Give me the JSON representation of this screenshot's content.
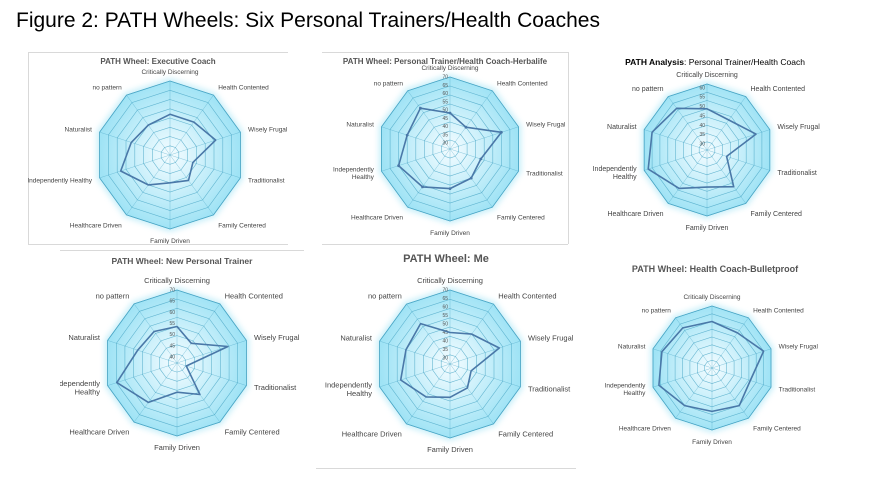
{
  "figure_title": "Figure 2: PATH Wheels: Six Personal Trainers/Health Coaches",
  "axis_labels": [
    "Critically Discerning",
    "Health Contented",
    "Wisely Frugal",
    "Traditionalist",
    "Family Centered",
    "Family Driven",
    "Healthcare Driven",
    "Independently Healthy",
    "Naturalist",
    "no pattern"
  ],
  "colors": {
    "fill_outer": "#9fe3f5",
    "fill_inner": "#dff6fd",
    "grid": "#4aa6c6",
    "line": "#4a78a8"
  },
  "chart_data": [
    {
      "type": "radar",
      "title": "PATH Wheel: Executive Coach",
      "tick_labels": [],
      "rmin": 30,
      "rmax": 70,
      "series": [
        {
          "values": [
            52,
            52,
            56,
            43,
            47,
            45,
            50,
            58,
            52,
            50
          ]
        }
      ]
    },
    {
      "type": "radar",
      "title": "PATH Wheel: Personal Trainer/Health Coach-Herbalife",
      "tick_labels": [
        "70",
        "65",
        "60",
        "55",
        "50",
        "45",
        "40",
        "35",
        "30"
      ],
      "rmin": 30,
      "rmax": 70,
      "series": [
        {
          "values": [
            50,
            45,
            60,
            48,
            50,
            52,
            56,
            60,
            55,
            58
          ]
        }
      ]
    },
    {
      "type": "radar",
      "title_bold": "PATH Analysis",
      "title": ": Personal Trainer/Health Coach",
      "tick_labels": [
        "60",
        "55",
        "50",
        "45",
        "40",
        "35",
        "30"
      ],
      "rmin": 30,
      "rmax": 62,
      "series": [
        {
          "values": [
            50,
            48,
            55,
            40,
            52,
            48,
            53,
            60,
            58,
            55
          ]
        }
      ]
    },
    {
      "type": "radar",
      "title": "PATH Wheel: New Personal Trainer",
      "tick_labels": [
        "70",
        "65",
        "60",
        "55",
        "50",
        "45",
        "40"
      ],
      "rmin": 40,
      "rmax": 70,
      "series": [
        {
          "values": [
            55,
            50,
            62,
            44,
            56,
            52,
            60,
            66,
            57,
            56
          ]
        }
      ]
    },
    {
      "type": "radar",
      "title": "PATH Wheel: Me",
      "tick_labels": [
        "70",
        "65",
        "60",
        "55",
        "50",
        "45",
        "40",
        "35",
        "30"
      ],
      "rmin": 30,
      "rmax": 70,
      "series": [
        {
          "values": [
            47,
            50,
            58,
            42,
            46,
            48,
            52,
            58,
            55,
            57
          ]
        }
      ]
    },
    {
      "type": "radar",
      "title": "PATH Wheel: Health Coach-Bulletproof",
      "tick_labels": [],
      "rmin": 30,
      "rmax": 70,
      "series": [
        {
          "values": [
            60,
            58,
            65,
            56,
            60,
            58,
            60,
            66,
            64,
            62
          ]
        }
      ]
    }
  ]
}
